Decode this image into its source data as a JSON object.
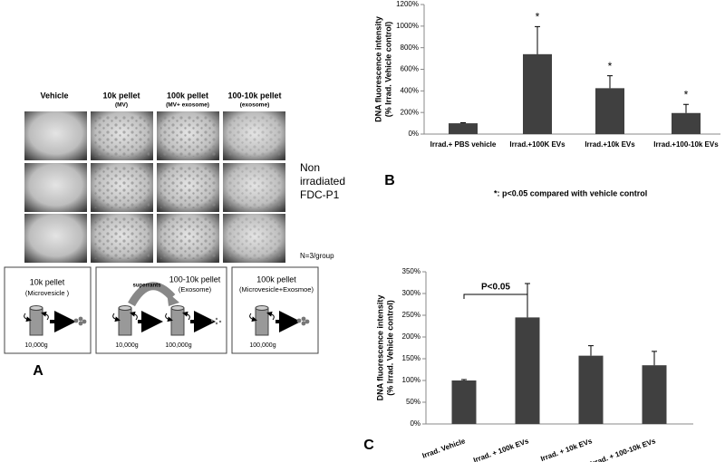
{
  "panel_a": {
    "label": "A",
    "columns": [
      {
        "title": "Vehicle"
      },
      {
        "title": "10k pellet",
        "subtitle": "(MV)"
      },
      {
        "title": "100k pellet",
        "subtitle": "(MV+ exosome)"
      },
      {
        "title": "100-10k pellet",
        "subtitle": "(exosome)"
      }
    ],
    "row_label": [
      "Non",
      "irradiated",
      "FDC-P1"
    ],
    "n_note": "N=3/group",
    "protocols": [
      {
        "title": "10k pellet",
        "subtitle": "(Microvesicle )",
        "speeds": [
          "10,000g"
        ]
      },
      {
        "title": "100-10k pellet",
        "subtitle": "(Exosome)",
        "transfer": "superrants",
        "speeds": [
          "10,000g",
          "100,000g"
        ]
      },
      {
        "title": "100k pellet",
        "subtitle": "(Microvesicle+Exosmoe)",
        "speeds": [
          "100,000g"
        ]
      }
    ]
  },
  "chart_data": [
    {
      "type": "bar",
      "panel_label": "B",
      "ylabel": [
        "DNA fluorescence intensity",
        "(% Irrad. Vehicle control)"
      ],
      "categories": [
        "Irrad.+ PBS vehicle",
        "Irrad.+100K EVs",
        "Irrad.+10k EVs",
        "Irrad.+100-10k EVs"
      ],
      "values": [
        100,
        740,
        425,
        195
      ],
      "errors": [
        5,
        255,
        115,
        80
      ],
      "value_marks": [
        null,
        "*",
        "*",
        "*"
      ],
      "color": "#404040",
      "ylim": [
        0,
        1200
      ],
      "yticks": [
        {
          "value": 0,
          "label": "0%"
        },
        {
          "value": 200,
          "label": "200%"
        },
        {
          "value": 400,
          "label": "400%"
        },
        {
          "value": 600,
          "label": "600%"
        },
        {
          "value": 800,
          "label": "800%"
        },
        {
          "value": 1000,
          "label": "1000%"
        },
        {
          "value": 1200,
          "label": "1200%"
        }
      ],
      "note": "*: p<0.05 compared with vehicle control"
    },
    {
      "type": "bar",
      "panel_label": "C",
      "ylabel": [
        "DNA fluorescence intensity",
        "(% Irrad. Vehicle control)"
      ],
      "categories": [
        "Irrad. Vehicle",
        "Irrad. + 100k EVs",
        "Irrad. + 10k EVs",
        "Irrad. + 100-10k EVs"
      ],
      "values": [
        100,
        245,
        157,
        135
      ],
      "errors": [
        2,
        78,
        23,
        32
      ],
      "color": "#404040",
      "ylim": [
        0,
        350
      ],
      "yticks": [
        {
          "value": 0,
          "label": "0%"
        },
        {
          "value": 50,
          "label": "50%"
        },
        {
          "value": 100,
          "label": "100%"
        },
        {
          "value": 150,
          "label": "150%"
        },
        {
          "value": 200,
          "label": "200%"
        },
        {
          "value": 250,
          "label": "250%"
        },
        {
          "value": 300,
          "label": "300%"
        },
        {
          "value": 350,
          "label": "350%"
        }
      ],
      "annotation": "P<0.05"
    }
  ]
}
